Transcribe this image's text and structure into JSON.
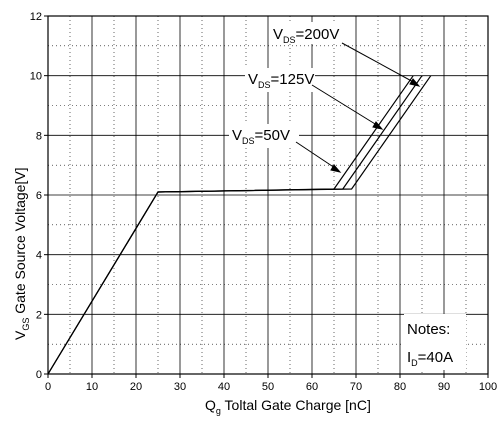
{
  "chart_data": {
    "type": "line",
    "xlabel": {
      "main": "Q",
      "sub": "g",
      "rest": " Toltal Gate Charge [nC]"
    },
    "ylabel": {
      "main": "V",
      "sub": "GS",
      "rest": " Gate Source Voltage[V]"
    },
    "xlim": [
      0,
      100
    ],
    "ylim": [
      0,
      12
    ],
    "x_ticks": [
      0,
      10,
      20,
      30,
      40,
      50,
      60,
      70,
      80,
      90,
      100
    ],
    "y_ticks": [
      0,
      2,
      4,
      6,
      8,
      10,
      12
    ],
    "grid": {
      "major": true,
      "minor_dotted": true
    },
    "series": [
      {
        "label_main": "V",
        "label_sub": "DS",
        "label_rest": "=50V",
        "points": [
          [
            0,
            0
          ],
          [
            25,
            6.1
          ],
          [
            65,
            6.2
          ],
          [
            83,
            10
          ]
        ]
      },
      {
        "label_main": "V",
        "label_sub": "DS",
        "label_rest": "=125V",
        "points": [
          [
            0,
            0
          ],
          [
            25,
            6.1
          ],
          [
            67,
            6.2
          ],
          [
            85,
            10
          ]
        ]
      },
      {
        "label_main": "V",
        "label_sub": "DS",
        "label_rest": "=200V",
        "points": [
          [
            0,
            0
          ],
          [
            25,
            6.1
          ],
          [
            69,
            6.2
          ],
          [
            87,
            10
          ]
        ]
      }
    ],
    "notes": {
      "line1": "Notes:",
      "line2_main": "I",
      "line2_sub": "D",
      "line2_rest": "=40A"
    }
  }
}
